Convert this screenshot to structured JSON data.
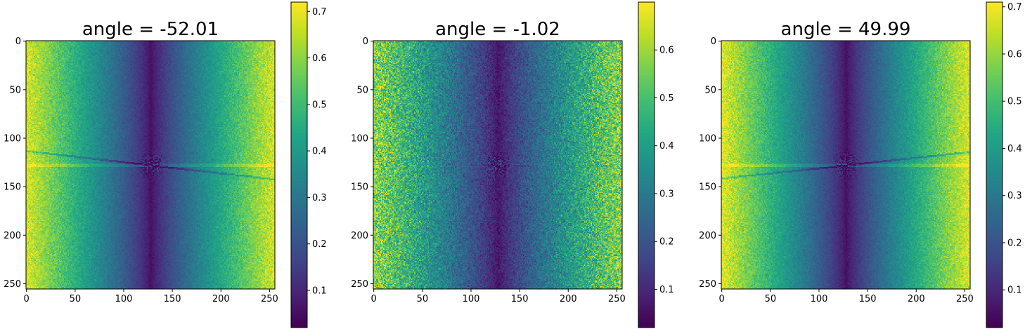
{
  "chart_data": [
    {
      "type": "heatmap",
      "title": "angle = -52.01",
      "angle": -52.01,
      "x_ticks": [
        0,
        50,
        100,
        150,
        200,
        250
      ],
      "y_ticks": [
        0,
        50,
        100,
        150,
        200,
        250
      ],
      "xlim": [
        0,
        256
      ],
      "ylim": [
        256,
        0
      ],
      "colormap": "viridis",
      "colorbar": {
        "range": [
          0.02,
          0.72
        ],
        "ticks": [
          0.1,
          0.2,
          0.3,
          0.4,
          0.5,
          0.6,
          0.7
        ]
      },
      "amplitude": {
        "edge": 0.68,
        "center": 0.05,
        "noise": 0.06,
        "lines": 0.12
      }
    },
    {
      "type": "heatmap",
      "title": "angle = -1.02",
      "angle": -1.02,
      "x_ticks": [
        0,
        50,
        100,
        150,
        200,
        250
      ],
      "y_ticks": [
        0,
        50,
        100,
        150,
        200,
        250
      ],
      "xlim": [
        0,
        256
      ],
      "ylim": [
        256,
        0
      ],
      "colormap": "viridis",
      "colorbar": {
        "range": [
          0.02,
          0.7
        ],
        "ticks": [
          0.1,
          0.2,
          0.3,
          0.4,
          0.5,
          0.6
        ]
      },
      "amplitude": {
        "edge": 0.58,
        "center": 0.06,
        "noise": 0.14,
        "lines": 0.03
      }
    },
    {
      "type": "heatmap",
      "title": "angle = 49.99",
      "angle": 49.99,
      "x_ticks": [
        0,
        50,
        100,
        150,
        200,
        250
      ],
      "y_ticks": [
        0,
        50,
        100,
        150,
        200,
        250
      ],
      "xlim": [
        0,
        256
      ],
      "ylim": [
        256,
        0
      ],
      "colormap": "viridis",
      "colorbar": {
        "range": [
          0.02,
          0.71
        ],
        "ticks": [
          0.1,
          0.2,
          0.3,
          0.4,
          0.5,
          0.6,
          0.7
        ]
      },
      "amplitude": {
        "edge": 0.68,
        "center": 0.05,
        "noise": 0.06,
        "lines": 0.12
      }
    }
  ]
}
